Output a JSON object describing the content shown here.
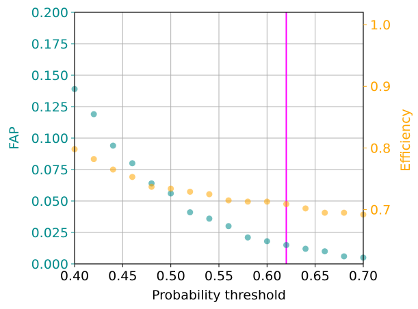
{
  "chart_data": {
    "type": "scatter",
    "xlabel": "Probability threshold",
    "ylabel_left": "FAP",
    "ylabel_right": "Efficiency",
    "xlim": [
      0.4,
      0.7
    ],
    "ylim_left": [
      0.0,
      0.2
    ],
    "ylim_right": [
      0.612,
      1.02
    ],
    "grid": true,
    "x_ticks": [
      "0.40",
      "0.45",
      "0.50",
      "0.55",
      "0.60",
      "0.65",
      "0.70"
    ],
    "y_ticks_left": [
      "0.000",
      "0.025",
      "0.050",
      "0.075",
      "0.100",
      "0.125",
      "0.150",
      "0.175",
      "0.200"
    ],
    "y_ticks_right": [
      "0.7",
      "0.8",
      "0.9",
      "1.0"
    ],
    "threshold_line_x": 0.62,
    "series": [
      {
        "axis": "left",
        "color": "#008b8b",
        "x": [
          0.4,
          0.42,
          0.44,
          0.46,
          0.48,
          0.5,
          0.52,
          0.54,
          0.56,
          0.58,
          0.6,
          0.62,
          0.64,
          0.66,
          0.68,
          0.7
        ],
        "y": [
          0.139,
          0.119,
          0.094,
          0.08,
          0.064,
          0.056,
          0.041,
          0.036,
          0.03,
          0.021,
          0.018,
          0.015,
          0.012,
          0.01,
          0.006,
          0.005
        ]
      },
      {
        "axis": "right",
        "color": "#ffa500",
        "x": [
          0.4,
          0.42,
          0.44,
          0.46,
          0.48,
          0.5,
          0.52,
          0.54,
          0.56,
          0.58,
          0.6,
          0.62,
          0.64,
          0.66,
          0.68,
          0.7
        ],
        "y": [
          0.798,
          0.782,
          0.765,
          0.753,
          0.737,
          0.734,
          0.729,
          0.725,
          0.715,
          0.713,
          0.713,
          0.709,
          0.702,
          0.695,
          0.695,
          0.692
        ]
      }
    ],
    "colors": {
      "left_axis": "#008b8b",
      "right_axis": "#ffa500",
      "threshold_line": "#ff00ff",
      "grid": "#b0b0b0"
    }
  }
}
